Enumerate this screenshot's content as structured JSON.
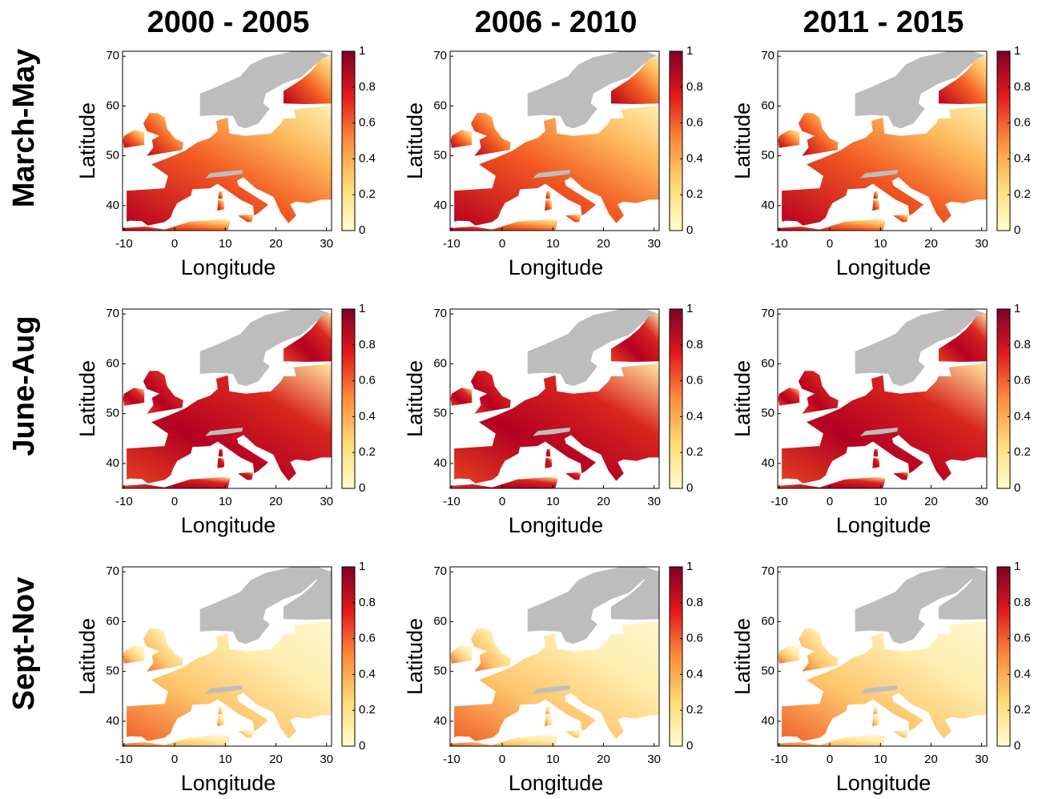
{
  "column_titles": [
    "2000 - 2005",
    "2006 - 2010",
    "2011 - 2015"
  ],
  "row_titles": [
    "March-May",
    "June-Aug",
    "Sept-Nov"
  ],
  "chart_data": [
    {
      "type": "heatmap",
      "xlabel": "Longitude",
      "ylabel": "Latitude",
      "xlim": [
        -10.3,
        31
      ],
      "ylim": [
        35,
        71
      ],
      "xticks": [
        -10,
        0,
        10,
        20,
        30
      ],
      "yticks": [
        40,
        50,
        60,
        70
      ],
      "colorbar": {
        "lim": [
          0,
          1
        ],
        "ticks": [
          0,
          0.2,
          0.4,
          0.6,
          0.8,
          1
        ]
      },
      "colormap": [
        "#ffffcc",
        "#fed976",
        "#fd8d3c",
        "#e31a1c",
        "#800026"
      ],
      "missing_color": "#bdbdbd"
    },
    {
      "type": "heatmap",
      "xlabel": "Longitude",
      "ylabel": "Latitude",
      "xlim": [
        -10.3,
        31
      ],
      "ylim": [
        35,
        71
      ],
      "xticks": [
        -10,
        0,
        10,
        20,
        30
      ],
      "yticks": [
        40,
        50,
        60,
        70
      ],
      "colorbar": {
        "lim": [
          0,
          1
        ],
        "ticks": [
          0,
          0.2,
          0.4,
          0.6,
          0.8,
          1
        ]
      },
      "colormap": [
        "#ffffcc",
        "#fed976",
        "#fd8d3c",
        "#e31a1c",
        "#800026"
      ],
      "missing_color": "#bdbdbd"
    },
    {
      "type": "heatmap",
      "xlabel": "Longitude",
      "ylabel": "Latitude",
      "xlim": [
        -10.3,
        31
      ],
      "ylim": [
        35,
        71
      ],
      "xticks": [
        -10,
        0,
        10,
        20,
        30
      ],
      "yticks": [
        40,
        50,
        60,
        70
      ],
      "colorbar": {
        "lim": [
          0,
          1
        ],
        "ticks": [
          0,
          0.2,
          0.4,
          0.6,
          0.8,
          1
        ]
      },
      "colormap": [
        "#ffffcc",
        "#fed976",
        "#fd8d3c",
        "#e31a1c",
        "#800026"
      ],
      "missing_color": "#bdbdbd"
    },
    {
      "type": "heatmap",
      "xlabel": "Longitude",
      "ylabel": "Latitude",
      "xlim": [
        -10.3,
        31
      ],
      "ylim": [
        35,
        71
      ],
      "xticks": [
        -10,
        0,
        10,
        20,
        30
      ],
      "yticks": [
        40,
        50,
        60,
        70
      ],
      "colorbar": {
        "lim": [
          0,
          1
        ],
        "ticks": [
          0,
          0.2,
          0.4,
          0.6,
          0.8,
          1
        ]
      },
      "colormap": [
        "#ffffcc",
        "#fed976",
        "#fd8d3c",
        "#e31a1c",
        "#800026"
      ],
      "missing_color": "#bdbdbd"
    },
    {
      "type": "heatmap",
      "xlabel": "Longitude",
      "ylabel": "Latitude",
      "xlim": [
        -10.3,
        31
      ],
      "ylim": [
        35,
        71
      ],
      "xticks": [
        -10,
        0,
        10,
        20,
        30
      ],
      "yticks": [
        40,
        50,
        60,
        70
      ],
      "colorbar": {
        "lim": [
          0,
          1
        ],
        "ticks": [
          0,
          0.2,
          0.4,
          0.6,
          0.8,
          1
        ]
      },
      "colormap": [
        "#ffffcc",
        "#fed976",
        "#fd8d3c",
        "#e31a1c",
        "#800026"
      ],
      "missing_color": "#bdbdbd"
    },
    {
      "type": "heatmap",
      "xlabel": "Longitude",
      "ylabel": "Latitude",
      "xlim": [
        -10.3,
        31
      ],
      "ylim": [
        35,
        71
      ],
      "xticks": [
        -10,
        0,
        10,
        20,
        30
      ],
      "yticks": [
        40,
        50,
        60,
        70
      ],
      "colorbar": {
        "lim": [
          0,
          1
        ],
        "ticks": [
          0,
          0.2,
          0.4,
          0.6,
          0.8,
          1
        ]
      },
      "colormap": [
        "#ffffcc",
        "#fed976",
        "#fd8d3c",
        "#e31a1c",
        "#800026"
      ],
      "missing_color": "#bdbdbd"
    },
    {
      "type": "heatmap",
      "xlabel": "Longitude",
      "ylabel": "Latitude",
      "xlim": [
        -10.3,
        31
      ],
      "ylim": [
        35,
        71
      ],
      "xticks": [
        -10,
        0,
        10,
        20,
        30
      ],
      "yticks": [
        40,
        50,
        60,
        70
      ],
      "colorbar": {
        "lim": [
          0,
          1
        ],
        "ticks": [
          0,
          0.2,
          0.4,
          0.6,
          0.8,
          1
        ]
      },
      "colormap": [
        "#ffffcc",
        "#fed976",
        "#fd8d3c",
        "#e31a1c",
        "#800026"
      ],
      "missing_color": "#bdbdbd"
    },
    {
      "type": "heatmap",
      "xlabel": "Longitude",
      "ylabel": "Latitude",
      "xlim": [
        -10.3,
        31
      ],
      "ylim": [
        35,
        71
      ],
      "xticks": [
        -10,
        0,
        10,
        20,
        30
      ],
      "yticks": [
        40,
        50,
        60,
        70
      ],
      "colorbar": {
        "lim": [
          0,
          1
        ],
        "ticks": [
          0,
          0.2,
          0.4,
          0.6,
          0.8,
          1
        ]
      },
      "colormap": [
        "#ffffcc",
        "#fed976",
        "#fd8d3c",
        "#e31a1c",
        "#800026"
      ],
      "missing_color": "#bdbdbd"
    },
    {
      "type": "heatmap",
      "xlabel": "Longitude",
      "ylabel": "Latitude",
      "xlim": [
        -10.3,
        31
      ],
      "ylim": [
        35,
        71
      ],
      "xticks": [
        -10,
        0,
        10,
        20,
        30
      ],
      "yticks": [
        40,
        50,
        60,
        70
      ],
      "colorbar": {
        "lim": [
          0,
          1
        ],
        "ticks": [
          0,
          0.2,
          0.4,
          0.6,
          0.8,
          1
        ]
      },
      "colormap": [
        "#ffffcc",
        "#fed976",
        "#fd8d3c",
        "#e31a1c",
        "#800026"
      ],
      "missing_color": "#bdbdbd"
    }
  ]
}
